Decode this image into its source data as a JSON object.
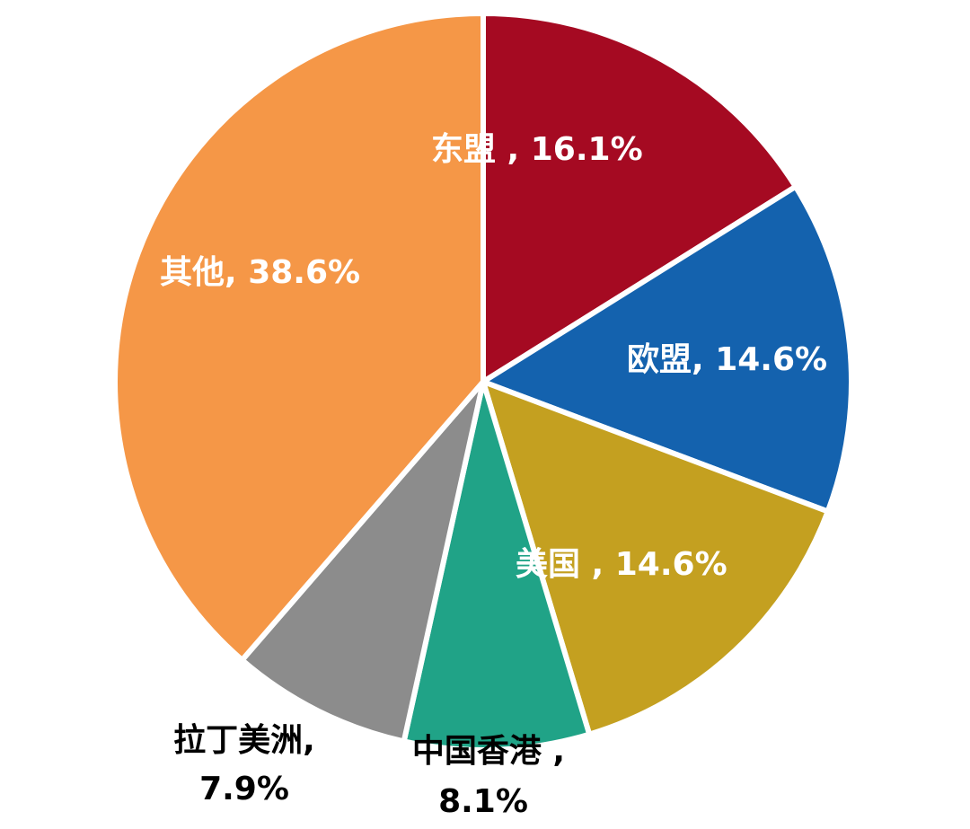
{
  "chart_data": {
    "type": "pie",
    "title": "",
    "start_angle_deg": 0,
    "direction": "clockwise",
    "slices": [
      {
        "category": "东盟",
        "value": 16.1,
        "label": "东盟 , 16.1%",
        "color": "#A50A22",
        "label_color": "#ffffff"
      },
      {
        "category": "欧盟",
        "value": 14.6,
        "label": "欧盟, 14.6%",
        "color": "#1462AE",
        "label_color": "#ffffff"
      },
      {
        "category": "美国",
        "value": 14.6,
        "label": "美国 , 14.6%",
        "color": "#C4A020",
        "label_color": "#ffffff"
      },
      {
        "category": "中国香港",
        "value": 8.1,
        "label": "中国香港 , 8.1%",
        "color": "#20A387",
        "label_color": "#000000"
      },
      {
        "category": "拉丁美洲",
        "value": 7.9,
        "label": "拉丁美洲, 7.9%",
        "color": "#8C8C8C",
        "label_color": "#000000"
      },
      {
        "category": "其他",
        "value": 38.6,
        "label": "其他, 38.6%",
        "color": "#F59747",
        "label_color": "#ffffff"
      }
    ]
  }
}
